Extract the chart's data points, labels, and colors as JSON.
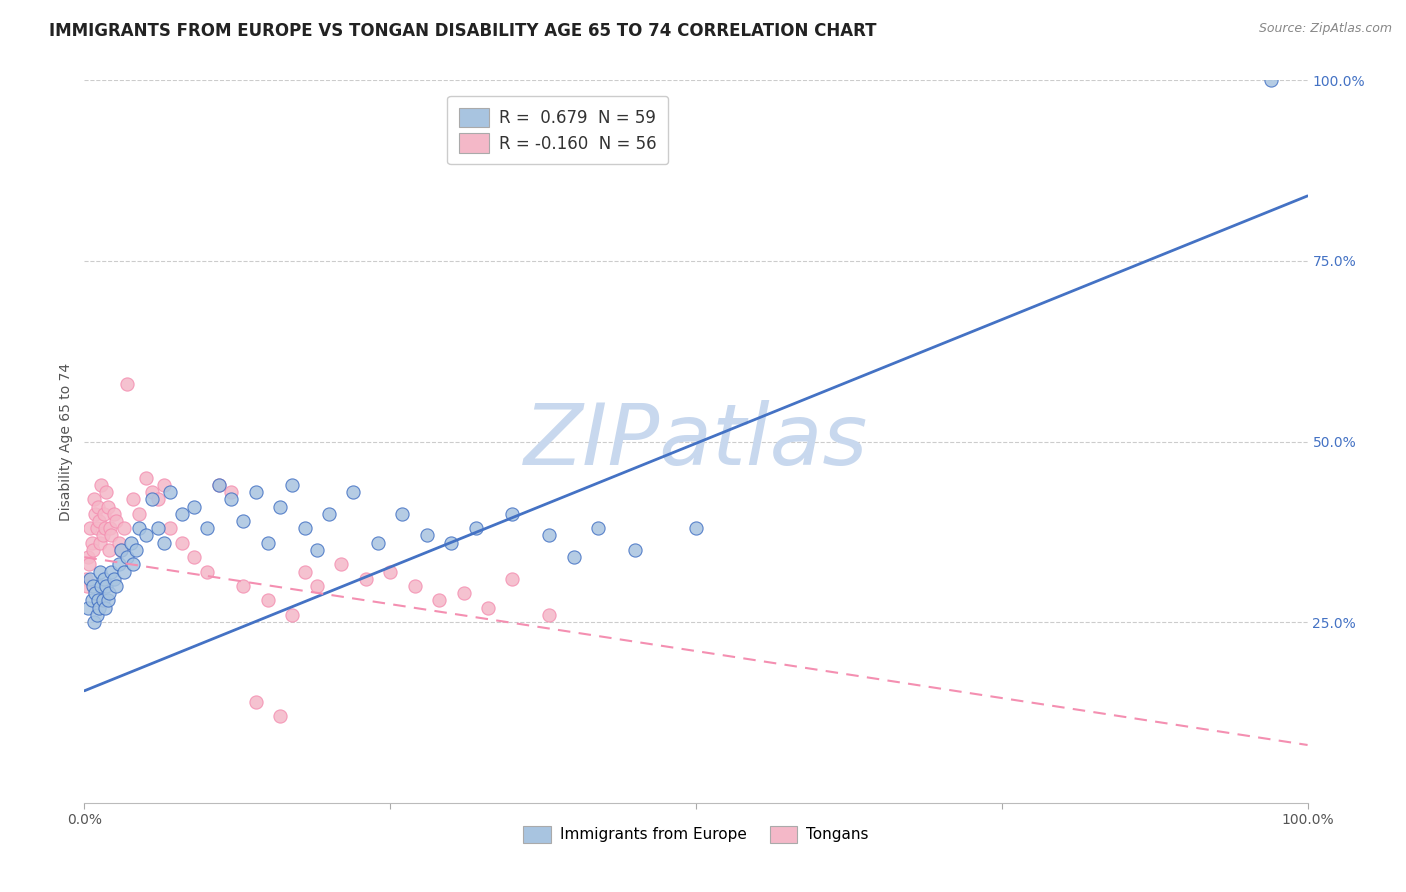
{
  "title": "IMMIGRANTS FROM EUROPE VS TONGAN DISABILITY AGE 65 TO 74 CORRELATION CHART",
  "source": "Source: ZipAtlas.com",
  "ylabel": "Disability Age 65 to 74",
  "xlim": [
    0,
    1
  ],
  "ylim": [
    0,
    1
  ],
  "watermark": "ZIPatlas",
  "legend_entries": [
    {
      "label_r": "R = ",
      "label_rv": " 0.679",
      "label_n": "  N = ",
      "label_nv": "59",
      "color": "#a8c4e0"
    },
    {
      "label_r": "R = ",
      "label_rv": "-0.160",
      "label_n": "  N = ",
      "label_nv": "56",
      "color": "#f4b8c8"
    }
  ],
  "blue_scatter_x": [
    0.003,
    0.005,
    0.006,
    0.007,
    0.008,
    0.009,
    0.01,
    0.011,
    0.012,
    0.013,
    0.014,
    0.015,
    0.016,
    0.017,
    0.018,
    0.019,
    0.02,
    0.022,
    0.024,
    0.026,
    0.028,
    0.03,
    0.032,
    0.035,
    0.038,
    0.04,
    0.042,
    0.045,
    0.05,
    0.055,
    0.06,
    0.065,
    0.07,
    0.08,
    0.09,
    0.1,
    0.11,
    0.12,
    0.13,
    0.14,
    0.15,
    0.16,
    0.17,
    0.18,
    0.19,
    0.2,
    0.22,
    0.24,
    0.26,
    0.28,
    0.3,
    0.32,
    0.35,
    0.38,
    0.4,
    0.42,
    0.45,
    0.5,
    0.97
  ],
  "blue_scatter_y": [
    0.27,
    0.31,
    0.28,
    0.3,
    0.25,
    0.29,
    0.26,
    0.28,
    0.27,
    0.32,
    0.3,
    0.28,
    0.31,
    0.27,
    0.3,
    0.28,
    0.29,
    0.32,
    0.31,
    0.3,
    0.33,
    0.35,
    0.32,
    0.34,
    0.36,
    0.33,
    0.35,
    0.38,
    0.37,
    0.42,
    0.38,
    0.36,
    0.43,
    0.4,
    0.41,
    0.38,
    0.44,
    0.42,
    0.39,
    0.43,
    0.36,
    0.41,
    0.44,
    0.38,
    0.35,
    0.4,
    0.43,
    0.36,
    0.4,
    0.37,
    0.36,
    0.38,
    0.4,
    0.37,
    0.34,
    0.38,
    0.35,
    0.38,
    1.0
  ],
  "pink_scatter_x": [
    0.001,
    0.002,
    0.003,
    0.004,
    0.005,
    0.006,
    0.007,
    0.008,
    0.009,
    0.01,
    0.011,
    0.012,
    0.013,
    0.014,
    0.015,
    0.016,
    0.017,
    0.018,
    0.019,
    0.02,
    0.021,
    0.022,
    0.024,
    0.026,
    0.028,
    0.03,
    0.032,
    0.035,
    0.04,
    0.045,
    0.05,
    0.055,
    0.06,
    0.065,
    0.07,
    0.08,
    0.09,
    0.1,
    0.11,
    0.12,
    0.13,
    0.15,
    0.17,
    0.18,
    0.19,
    0.21,
    0.23,
    0.25,
    0.27,
    0.29,
    0.31,
    0.33,
    0.35,
    0.38,
    0.14,
    0.16
  ],
  "pink_scatter_y": [
    0.31,
    0.3,
    0.34,
    0.33,
    0.38,
    0.36,
    0.35,
    0.42,
    0.4,
    0.38,
    0.41,
    0.39,
    0.36,
    0.44,
    0.37,
    0.4,
    0.38,
    0.43,
    0.41,
    0.35,
    0.38,
    0.37,
    0.4,
    0.39,
    0.36,
    0.35,
    0.38,
    0.58,
    0.42,
    0.4,
    0.45,
    0.43,
    0.42,
    0.44,
    0.38,
    0.36,
    0.34,
    0.32,
    0.44,
    0.43,
    0.3,
    0.28,
    0.26,
    0.32,
    0.3,
    0.33,
    0.31,
    0.32,
    0.3,
    0.28,
    0.29,
    0.27,
    0.31,
    0.26,
    0.14,
    0.12
  ],
  "blue_line_x": [
    0,
    1
  ],
  "blue_line_y": [
    0.155,
    0.84
  ],
  "pink_line_x": [
    0,
    1
  ],
  "pink_line_y": [
    0.34,
    0.08
  ],
  "blue_color": "#4472c4",
  "pink_color": "#f48fb1",
  "blue_scatter_color": "#a8c4e0",
  "pink_scatter_color": "#f4b8c8",
  "grid_color": "#c0c0c0",
  "background_color": "#ffffff",
  "title_fontsize": 12,
  "axis_label_fontsize": 10,
  "tick_fontsize": 10,
  "watermark_color": "#c8d8ee",
  "source_fontsize": 9,
  "y_ticks": [
    0.25,
    0.5,
    0.75,
    1.0
  ],
  "y_tick_labels": [
    "25.0%",
    "50.0%",
    "75.0%",
    "100.0%"
  ],
  "x_ticks": [
    0.0,
    0.25,
    0.5,
    0.75,
    1.0
  ],
  "x_tick_labels_show": [
    "0.0%",
    "",
    "",
    "",
    "100.0%"
  ]
}
